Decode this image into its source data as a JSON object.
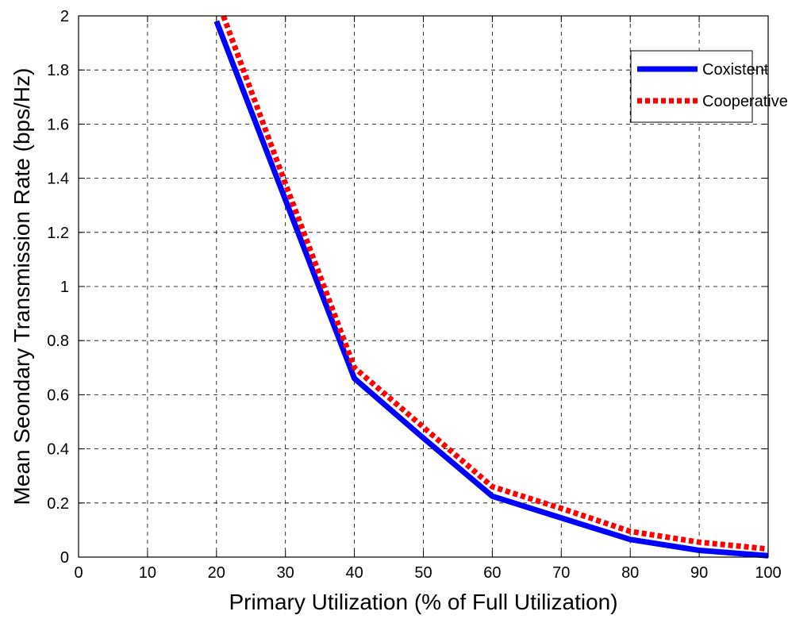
{
  "chart_data": {
    "type": "line",
    "xlabel": "Primary Utilization (% of Full Utilization)",
    "ylabel": "Mean Seondary Transmission Rate (bps/Hz)",
    "xlim": [
      0,
      100
    ],
    "ylim": [
      0,
      2
    ],
    "xticks": [
      "0",
      "10",
      "20",
      "30",
      "40",
      "50",
      "60",
      "70",
      "80",
      "90",
      "100"
    ],
    "yticks": [
      "0",
      "0.2",
      "0.4",
      "0.6",
      "0.8",
      "1",
      "1.2",
      "1.4",
      "1.6",
      "1.8",
      "2"
    ],
    "grid": true,
    "legend_position": "top-right",
    "series": [
      {
        "name": "Coxistent",
        "color": "#0000ff",
        "style": "solid",
        "x": [
          20,
          30,
          40,
          50,
          60,
          70,
          80,
          90,
          100
        ],
        "y": [
          1.98,
          1.32,
          0.66,
          0.44,
          0.225,
          0.145,
          0.065,
          0.025,
          0.005
        ]
      },
      {
        "name": "Cooperative",
        "color": "#ff0000",
        "style": "dotted",
        "x": [
          21,
          30,
          40,
          50,
          60,
          70,
          80,
          90,
          100
        ],
        "y": [
          2.0,
          1.38,
          0.7,
          0.48,
          0.26,
          0.18,
          0.095,
          0.055,
          0.03
        ]
      }
    ]
  }
}
